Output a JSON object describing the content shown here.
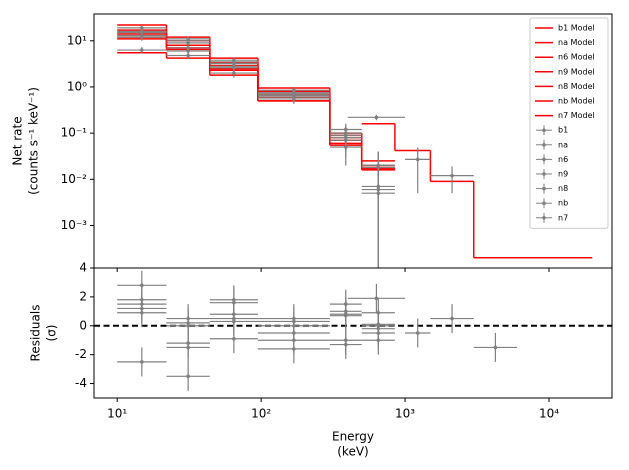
{
  "chart_data": [
    {
      "type": "step",
      "ylabel": [
        "Net rate",
        "(counts s⁻¹ keV⁻¹)"
      ],
      "xlim": [
        6.9,
        27400
      ],
      "xscale": "log",
      "ylim": [
        0.00012,
        38
      ],
      "yscale": "log",
      "yticks": [
        {
          "value": 0.001,
          "label": "10⁻³"
        },
        {
          "value": 0.01,
          "label": "10⁻²"
        },
        {
          "value": 0.1,
          "label": "10⁻¹"
        },
        {
          "value": 1,
          "label": "10⁰"
        },
        {
          "value": 10,
          "label": "10¹"
        }
      ],
      "legend": "upper right",
      "series": [
        {
          "name": "b1 Model",
          "kind": "model",
          "color": "#ff0000",
          "bins": [
            500,
            850,
            1500,
            3000,
            20000
          ],
          "values": [
            0.16,
            0.042,
            0.009,
            0.0002
          ]
        },
        {
          "name": "na Model",
          "kind": "model",
          "color": "#ff0000",
          "bins": [
            10,
            22,
            44,
            95,
            300,
            500,
            850
          ],
          "values": [
            22,
            12,
            4.2,
            0.95,
            0.1,
            0.025
          ]
        },
        {
          "name": "n6 Model",
          "kind": "model",
          "color": "#ff0000",
          "bins": [
            10,
            22,
            44,
            95,
            300,
            500,
            850
          ],
          "values": [
            17,
            10,
            3.3,
            0.8,
            0.09,
            0.02
          ]
        },
        {
          "name": "n9 Model",
          "kind": "model",
          "color": "#ff0000",
          "bins": [
            10,
            22,
            44,
            95,
            300,
            500,
            850
          ],
          "values": [
            14,
            8,
            2.9,
            0.7,
            0.08,
            0.018
          ]
        },
        {
          "name": "n8 Model",
          "kind": "model",
          "color": "#ff0000",
          "bins": [
            10,
            22,
            44,
            95,
            300,
            500,
            850
          ],
          "values": [
            12,
            7,
            2.5,
            0.6,
            0.07,
            0.017
          ]
        },
        {
          "name": "nb Model",
          "kind": "model",
          "color": "#ff0000",
          "bins": [
            10,
            22,
            44,
            95,
            300,
            500,
            850
          ],
          "values": [
            11,
            6.5,
            2.3,
            0.5,
            0.06,
            0.017
          ]
        },
        {
          "name": "n7 Model",
          "kind": "model",
          "color": "#ff0000",
          "bins": [
            10,
            22,
            44,
            95,
            300,
            500,
            850
          ],
          "values": [
            5.5,
            4.2,
            1.8,
            0.5,
            0.055,
            0.016
          ]
        },
        {
          "name": "b1",
          "kind": "data",
          "color": "#808080",
          "bins": [
            400,
            1000,
            1500,
            3000,
            6000
          ],
          "values": [
            0.22,
            0.027,
            0.012,
            null
          ],
          "errors": [
            0.03,
            0.022,
            0.007,
            null
          ]
        },
        {
          "name": "na",
          "kind": "data",
          "color": "#808080",
          "bins": [
            10,
            22,
            44,
            95,
            300,
            500,
            850
          ],
          "values": [
            19,
            11,
            3.8,
            0.85,
            0.12,
            0.006
          ],
          "errors": [
            2,
            1.2,
            0.6,
            0.15,
            0.04,
            0.02
          ]
        },
        {
          "name": "n6",
          "kind": "data",
          "color": "#808080",
          "bins": [
            10,
            22,
            44,
            95,
            300,
            500,
            850
          ],
          "values": [
            16,
            10,
            3.5,
            0.75,
            0.1,
            0.02
          ],
          "errors": [
            2,
            1.2,
            0.6,
            0.15,
            0.04,
            0.02
          ]
        },
        {
          "name": "n9",
          "kind": "data",
          "color": "#808080",
          "bins": [
            10,
            22,
            44,
            95,
            300,
            500,
            850
          ],
          "values": [
            15,
            9,
            3.2,
            0.7,
            0.09,
            0.018
          ],
          "errors": [
            2,
            1.2,
            0.6,
            0.15,
            0.04,
            0.02
          ]
        },
        {
          "name": "n8",
          "kind": "data",
          "color": "#808080",
          "bins": [
            10,
            22,
            44,
            95,
            300,
            500,
            850
          ],
          "values": [
            13,
            7,
            2.8,
            0.65,
            0.08,
            0.005
          ],
          "errors": [
            2,
            1.2,
            0.6,
            0.15,
            0.04,
            0.02
          ]
        },
        {
          "name": "nb",
          "kind": "data",
          "color": "#808080",
          "bins": [
            10,
            22,
            44,
            95,
            300,
            500,
            850
          ],
          "values": [
            12,
            6,
            2.6,
            0.6,
            0.07,
            0.02
          ],
          "errors": [
            2,
            1.2,
            0.6,
            0.15,
            0.04,
            0.02
          ]
        },
        {
          "name": "n7",
          "kind": "data",
          "color": "#808080",
          "bins": [
            10,
            22,
            44,
            95,
            300,
            500,
            850
          ],
          "values": [
            6.3,
            4.8,
            2.0,
            0.55,
            0.05,
            0.007
          ],
          "errors": [
            1,
            0.8,
            0.4,
            0.12,
            0.03,
            0.02
          ]
        }
      ]
    },
    {
      "type": "residual",
      "ylabel": [
        "Residuals",
        "(σ)"
      ],
      "xlabel": [
        "Energy",
        "(keV)"
      ],
      "xlim": [
        6.9,
        27400
      ],
      "xscale": "log",
      "xticks": [
        {
          "value": 10,
          "label": "10¹"
        },
        {
          "value": 100,
          "label": "10²"
        },
        {
          "value": 1000,
          "label": "10³"
        },
        {
          "value": 10000,
          "label": "10⁴"
        }
      ],
      "ylim": [
        -5,
        4
      ],
      "yticks": [
        -4,
        -2,
        0,
        2,
        4
      ],
      "reference_line": 0,
      "series": [
        {
          "color": "#808080",
          "bins": [
            400,
            1000,
            1500,
            3000,
            6000
          ],
          "values": [
            1.9,
            -0.5,
            0.5,
            -1.5
          ],
          "errors": [
            1,
            1,
            1,
            1
          ]
        },
        {
          "color": "#808080",
          "bins": [
            10,
            22,
            44,
            95,
            300,
            500,
            850
          ],
          "values": [
            2.8,
            0.5,
            1.8,
            0.5,
            1.5,
            -1.0
          ],
          "errors": [
            1,
            1,
            1,
            1,
            1,
            1
          ]
        },
        {
          "color": "#808080",
          "bins": [
            10,
            22,
            44,
            95,
            300,
            500,
            850
          ],
          "values": [
            1.8,
            0.2,
            1.6,
            0.3,
            1.0,
            0.1
          ],
          "errors": [
            1,
            1,
            1,
            1,
            1,
            1
          ]
        },
        {
          "color": "#808080",
          "bins": [
            10,
            22,
            44,
            95,
            300,
            500,
            850
          ],
          "values": [
            1.5,
            -1.2,
            0.8,
            -0.5,
            0.7,
            -0.2
          ],
          "errors": [
            1,
            1,
            1,
            1,
            1,
            1
          ]
        },
        {
          "color": "#808080",
          "bins": [
            10,
            22,
            44,
            95,
            300,
            500,
            850
          ],
          "values": [
            1.2,
            -1.5,
            0.5,
            -1.0,
            -1.0,
            0.9
          ],
          "errors": [
            1,
            1,
            1,
            1,
            1,
            1
          ]
        },
        {
          "color": "#808080",
          "bins": [
            10,
            22,
            44,
            95,
            300,
            500,
            850
          ],
          "values": [
            0.9,
            0,
            -0.9,
            -1.6,
            -1.3,
            -0.5
          ],
          "errors": [
            1,
            1,
            1,
            1,
            1,
            1
          ]
        },
        {
          "color": "#808080",
          "bins": [
            10,
            22,
            44,
            95,
            300,
            500,
            850
          ],
          "values": [
            -2.5,
            -3.5,
            0.3,
            0,
            0.8,
            0
          ],
          "errors": [
            1,
            1,
            1,
            1,
            1,
            1
          ]
        }
      ]
    }
  ]
}
